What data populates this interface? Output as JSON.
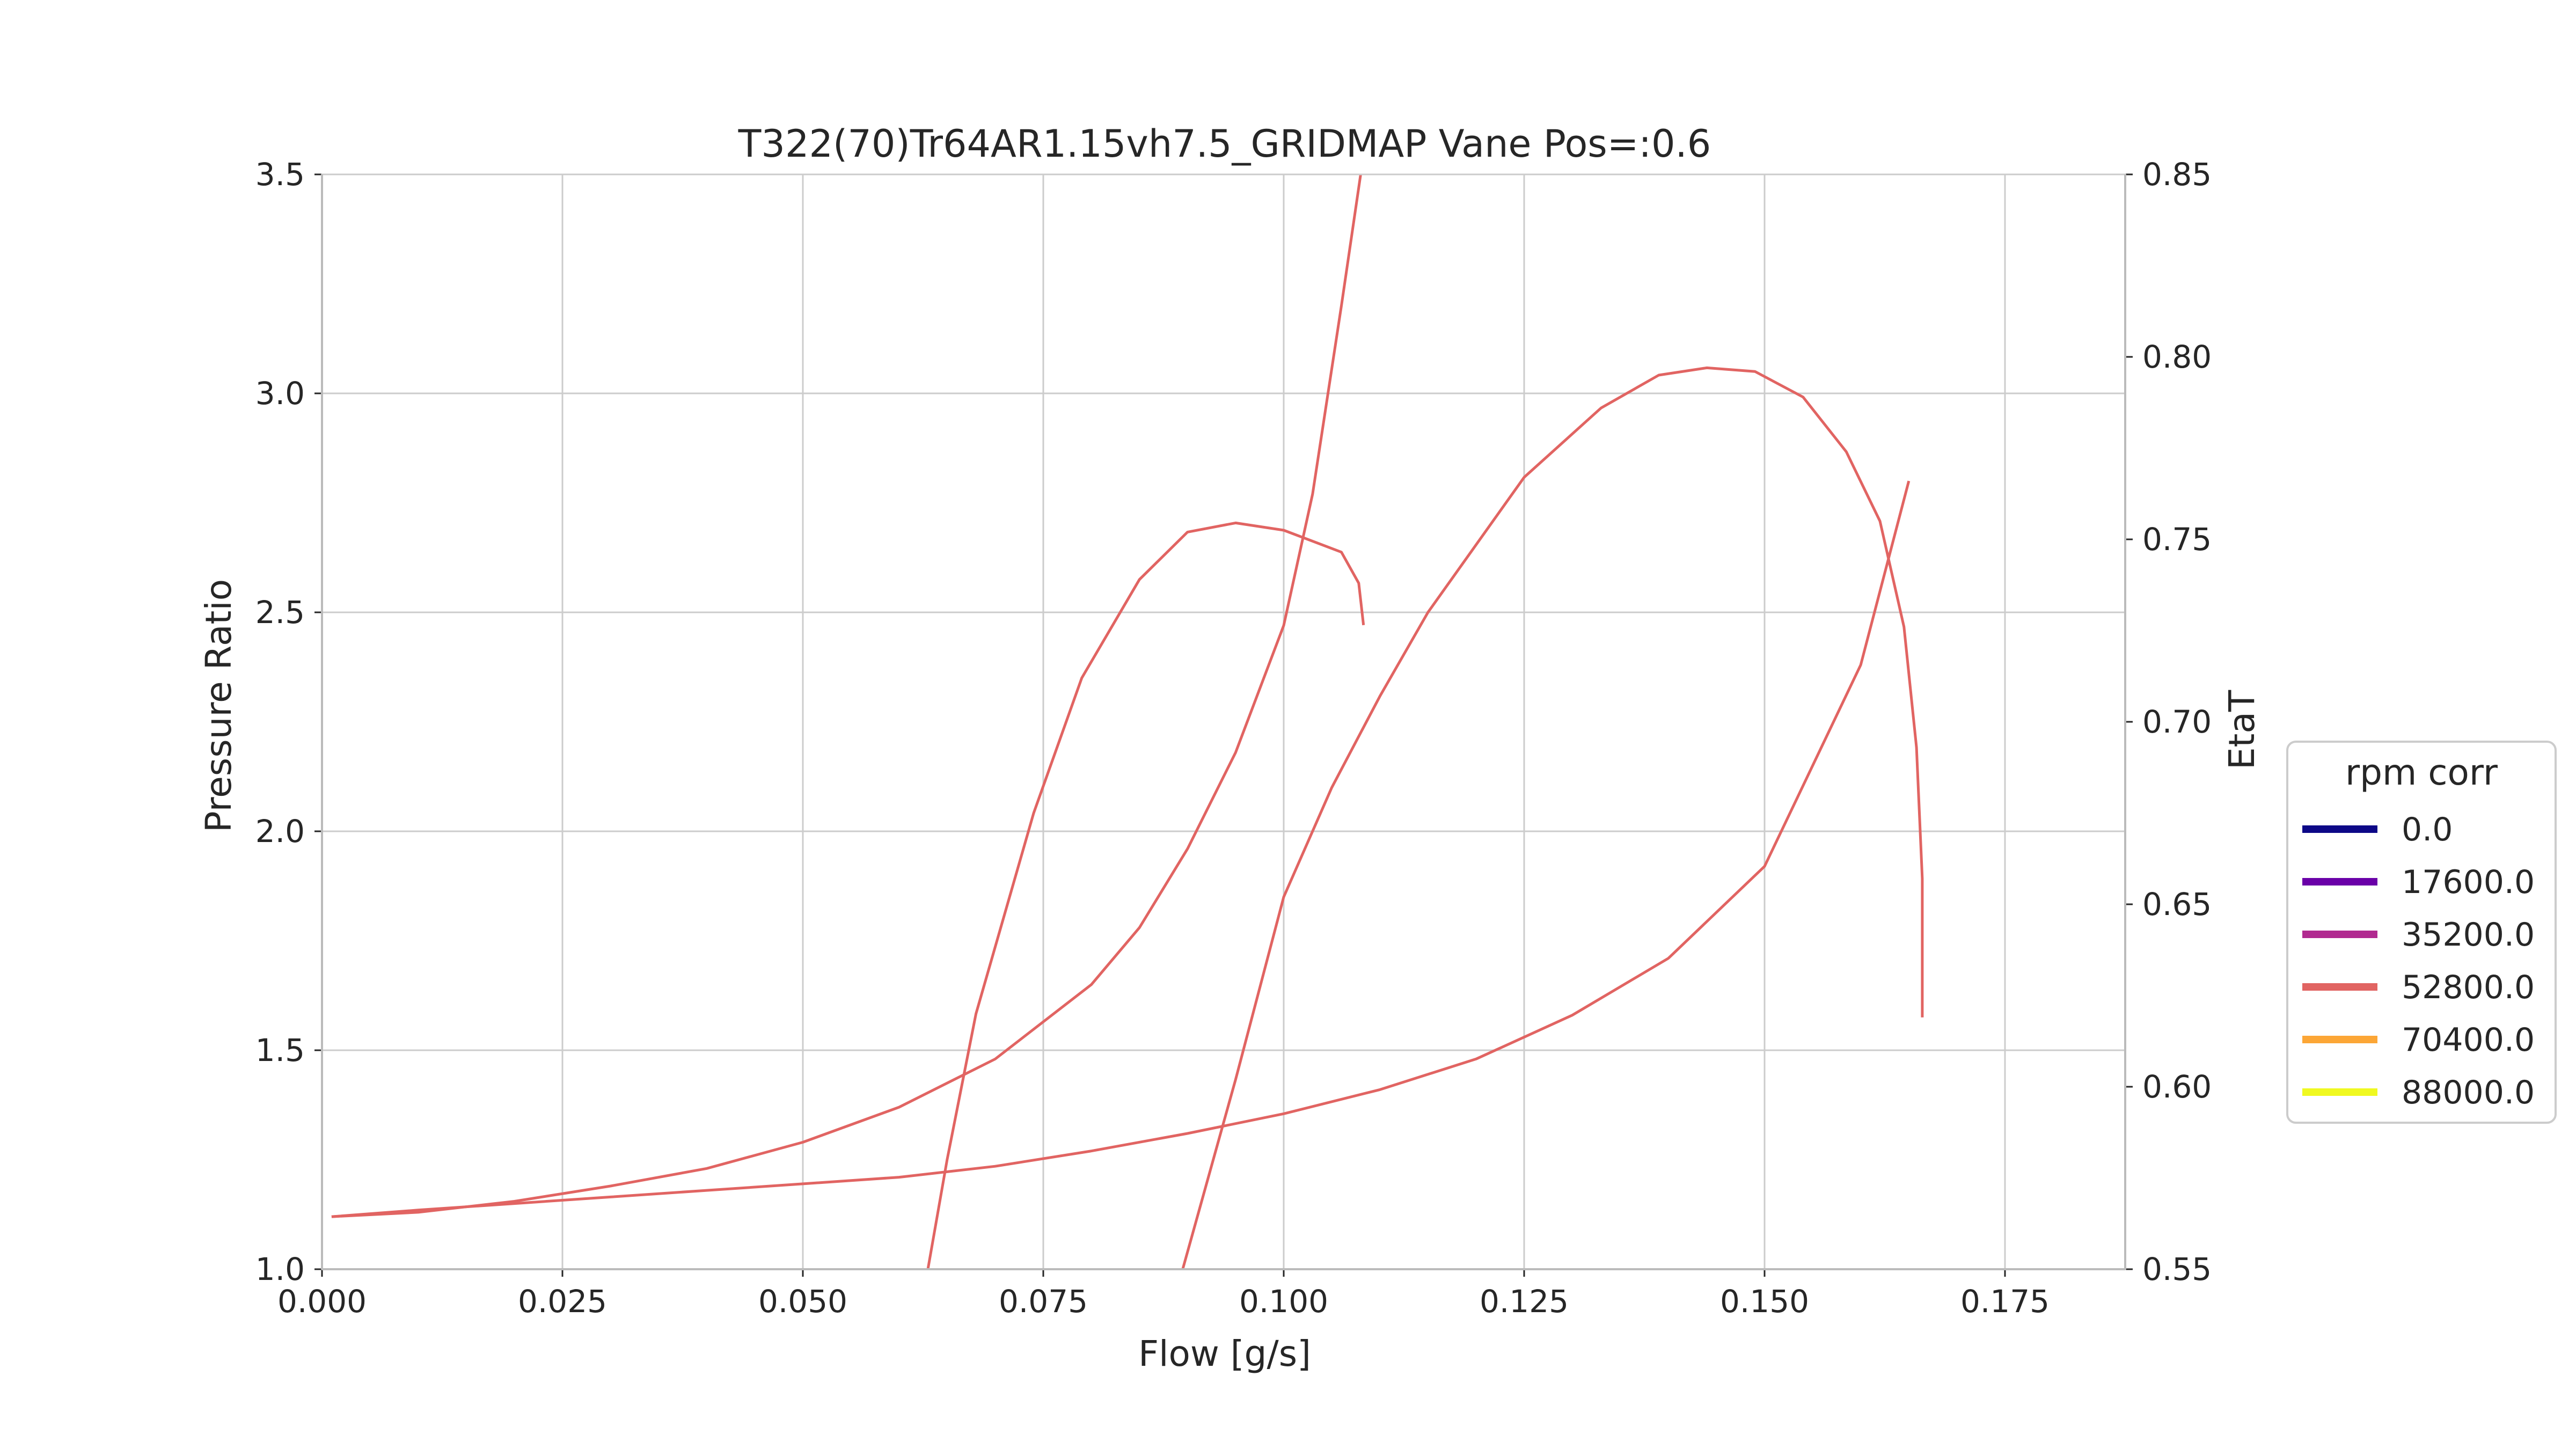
{
  "chart_data": {
    "type": "line",
    "title": "T322(70)Tr64AR1.15vh7.5_GRIDMAP Vane Pos=:0.6",
    "xlabel": "Flow [g/s]",
    "ylabel": "Pressure Ratio",
    "y2label": "EtaT",
    "xlim": [
      0.0,
      0.1875
    ],
    "ylim": [
      1.0,
      3.5
    ],
    "y2lim": [
      0.55,
      0.85
    ],
    "xticks": [
      "0.000",
      "0.025",
      "0.050",
      "0.075",
      "0.100",
      "0.125",
      "0.150",
      "0.175"
    ],
    "yticks": [
      "1.0",
      "1.5",
      "2.0",
      "2.5",
      "3.0",
      "3.5"
    ],
    "y2ticks": [
      "0.55",
      "0.60",
      "0.65",
      "0.70",
      "0.75",
      "0.80",
      "0.85"
    ],
    "grid": true,
    "legend": {
      "title": "rpm corr",
      "placement": "right",
      "entries": [
        {
          "label": "0.0",
          "color": "#0d0887"
        },
        {
          "label": "17600.0",
          "color": "#6a00a8"
        },
        {
          "label": "35200.0",
          "color": "#b12a90"
        },
        {
          "label": "52800.0",
          "color": "#e16462"
        },
        {
          "label": "70400.0",
          "color": "#fca636"
        },
        {
          "label": "88000.0",
          "color": "#f0f921"
        }
      ]
    },
    "line_color": "#e16462",
    "series": [
      {
        "axis": "pr",
        "x": [
          0.001,
          0.01,
          0.02,
          0.03,
          0.04,
          0.05,
          0.06,
          0.07,
          0.08,
          0.09,
          0.1,
          0.11,
          0.12,
          0.13,
          0.14,
          0.15,
          0.16,
          0.165
        ],
        "y": [
          1.12,
          1.135,
          1.15,
          1.165,
          1.18,
          1.195,
          1.21,
          1.235,
          1.27,
          1.31,
          1.355,
          1.41,
          1.48,
          1.58,
          1.71,
          1.92,
          2.38,
          2.8
        ]
      },
      {
        "axis": "pr",
        "x": [
          0.001,
          0.01,
          0.02,
          0.03,
          0.04,
          0.05,
          0.06,
          0.07,
          0.08,
          0.085,
          0.09,
          0.095,
          0.1,
          0.103,
          0.106,
          0.108
        ],
        "y": [
          1.12,
          1.13,
          1.155,
          1.19,
          1.23,
          1.29,
          1.37,
          1.48,
          1.65,
          1.78,
          1.96,
          2.18,
          2.47,
          2.77,
          3.2,
          3.5
        ]
      },
      {
        "axis": "eta",
        "x": [
          0.063,
          0.065,
          0.068,
          0.074,
          0.079,
          0.085,
          0.09,
          0.095,
          0.1,
          0.106,
          0.1078,
          0.1083
        ],
        "y": [
          0.55,
          0.58,
          0.62,
          0.675,
          0.712,
          0.739,
          0.752,
          0.7545,
          0.7525,
          0.7465,
          0.738,
          0.7265
        ]
      },
      {
        "axis": "eta",
        "x": [
          0.0895,
          0.095,
          0.1,
          0.105,
          0.11,
          0.115,
          0.125,
          0.133,
          0.139,
          0.144,
          0.149,
          0.154,
          0.1585,
          0.162,
          0.1645,
          0.1658,
          0.1664,
          0.1664
        ],
        "y": [
          0.55,
          0.602,
          0.652,
          0.682,
          0.707,
          0.73,
          0.767,
          0.786,
          0.795,
          0.797,
          0.796,
          0.789,
          0.774,
          0.755,
          0.726,
          0.693,
          0.657,
          0.619
        ]
      }
    ]
  }
}
